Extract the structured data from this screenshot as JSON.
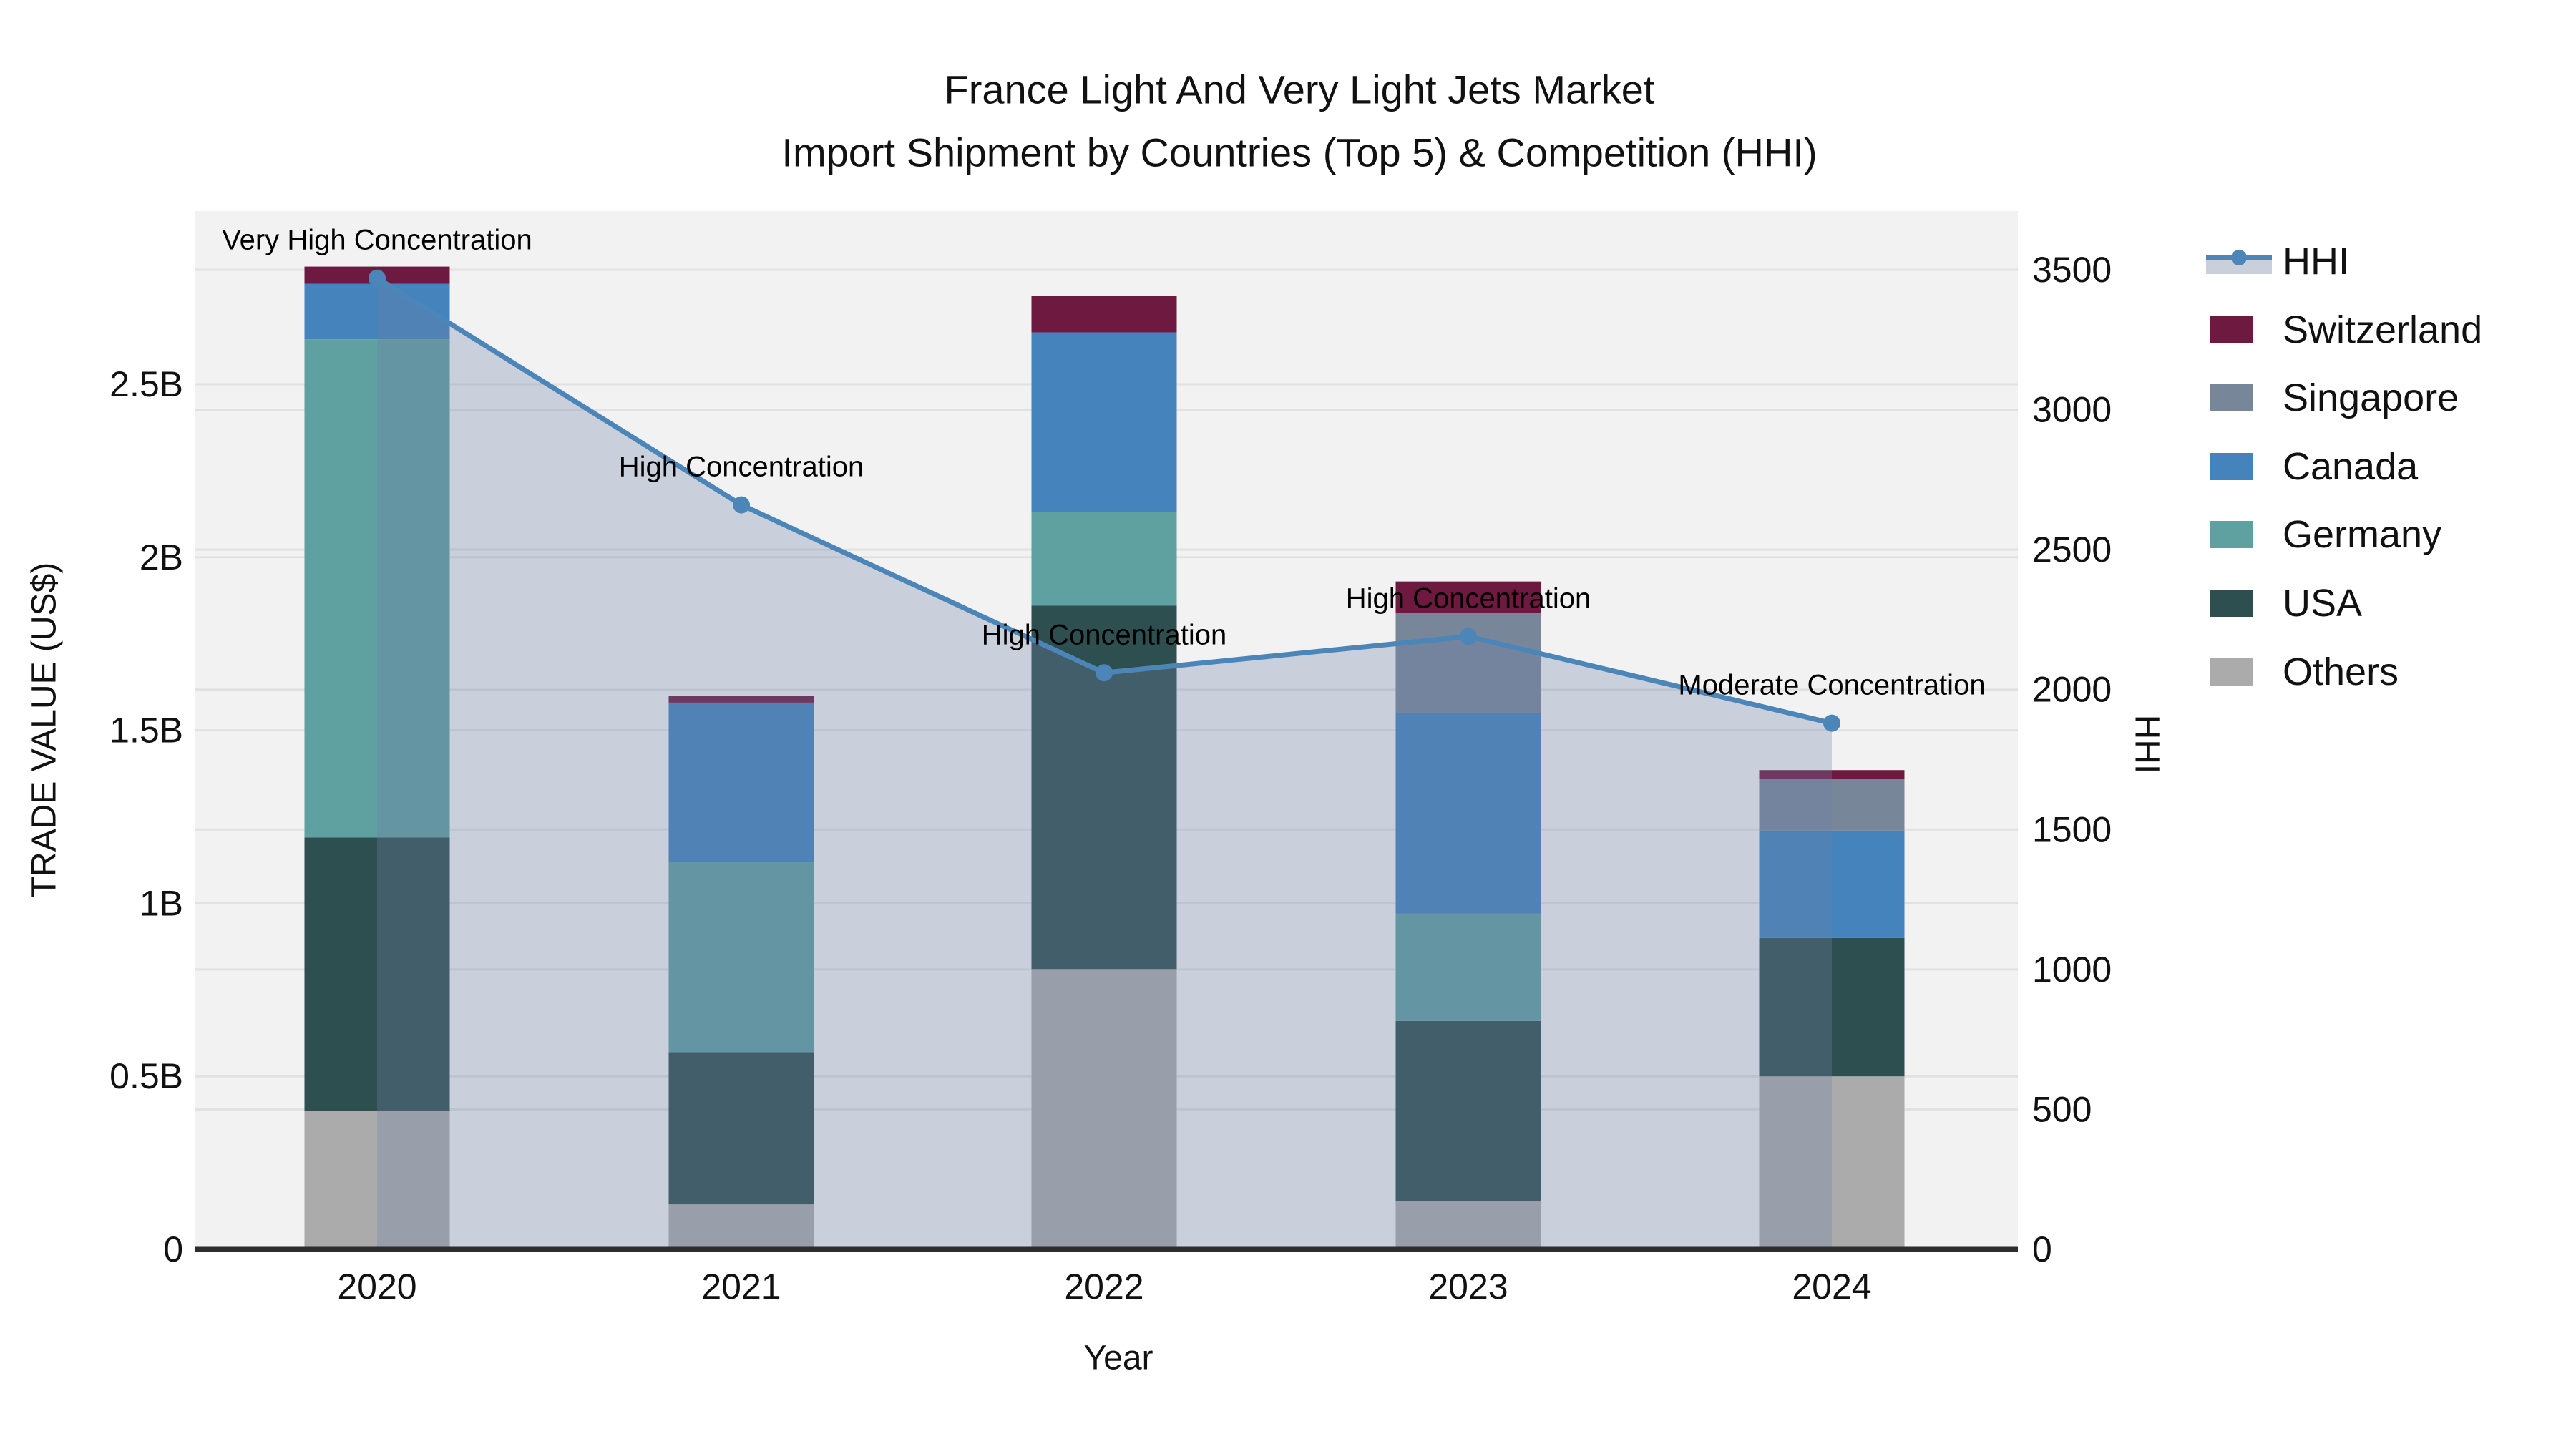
{
  "title": {
    "line1": "France Light And Very Light Jets Market",
    "line2": "Import Shipment by Countries (Top 5) & Competition (HHI)"
  },
  "chart_data": {
    "type": "stacked-bar+line",
    "categories": [
      "2020",
      "2021",
      "2022",
      "2023",
      "2024"
    ],
    "series": [
      {
        "name": "Others",
        "color": "#ababab",
        "values": [
          0.4,
          0.13,
          0.81,
          0.14,
          0.5
        ]
      },
      {
        "name": "USA",
        "color": "#2e4f4f",
        "values": [
          0.79,
          0.44,
          1.05,
          0.52,
          0.4
        ]
      },
      {
        "name": "Germany",
        "color": "#5fa0a0",
        "values": [
          1.44,
          0.55,
          0.27,
          0.31,
          0.0
        ]
      },
      {
        "name": "Canada",
        "color": "#4583bd",
        "values": [
          0.16,
          0.46,
          0.52,
          0.58,
          0.31
        ]
      },
      {
        "name": "Singapore",
        "color": "#78869a",
        "values": [
          0.0,
          0.0,
          0.0,
          0.29,
          0.15
        ]
      },
      {
        "name": "Switzerland",
        "color": "#6e1a40",
        "values": [
          0.05,
          0.02,
          0.105,
          0.09,
          0.025
        ]
      }
    ],
    "line_series": {
      "name": "HHI",
      "color": "#4c86b8",
      "area_fill": "rgba(110,129,168,0.31)",
      "axis": "right",
      "values": [
        3470,
        2660,
        2060,
        2190,
        1880
      ]
    },
    "annotations": [
      {
        "category": "2020",
        "text": "Very High Concentration"
      },
      {
        "category": "2021",
        "text": "High Concentration"
      },
      {
        "category": "2022",
        "text": "High Concentration"
      },
      {
        "category": "2023",
        "text": "High Concentration"
      },
      {
        "category": "2024",
        "text": "Moderate Concentration"
      }
    ],
    "left_axis": {
      "label": "TRADE VALUE (US$)",
      "ticks": [
        "0",
        "0.5B",
        "1B",
        "1.5B",
        "2B",
        "2.5B"
      ],
      "tick_values": [
        0,
        0.5,
        1,
        1.5,
        2,
        2.5
      ]
    },
    "right_axis": {
      "label": "HHI",
      "ticks": [
        "0",
        "500",
        "1000",
        "1500",
        "2000",
        "2500",
        "3000",
        "3500"
      ],
      "tick_values": [
        0,
        500,
        1000,
        1500,
        2000,
        2500,
        3000,
        3500
      ]
    },
    "x_axis": {
      "label": "Year"
    },
    "legend_order": [
      "HHI",
      "Switzerland",
      "Singapore",
      "Canada",
      "Germany",
      "USA",
      "Others"
    ],
    "legend_hhi_swatch_color": "#c9cfdb",
    "grid": true,
    "plot_background": "#f2f2f2",
    "gridline_color": "#e1e1e1",
    "axisline_color": "#2d2d2d",
    "text_color": "#111111"
  }
}
